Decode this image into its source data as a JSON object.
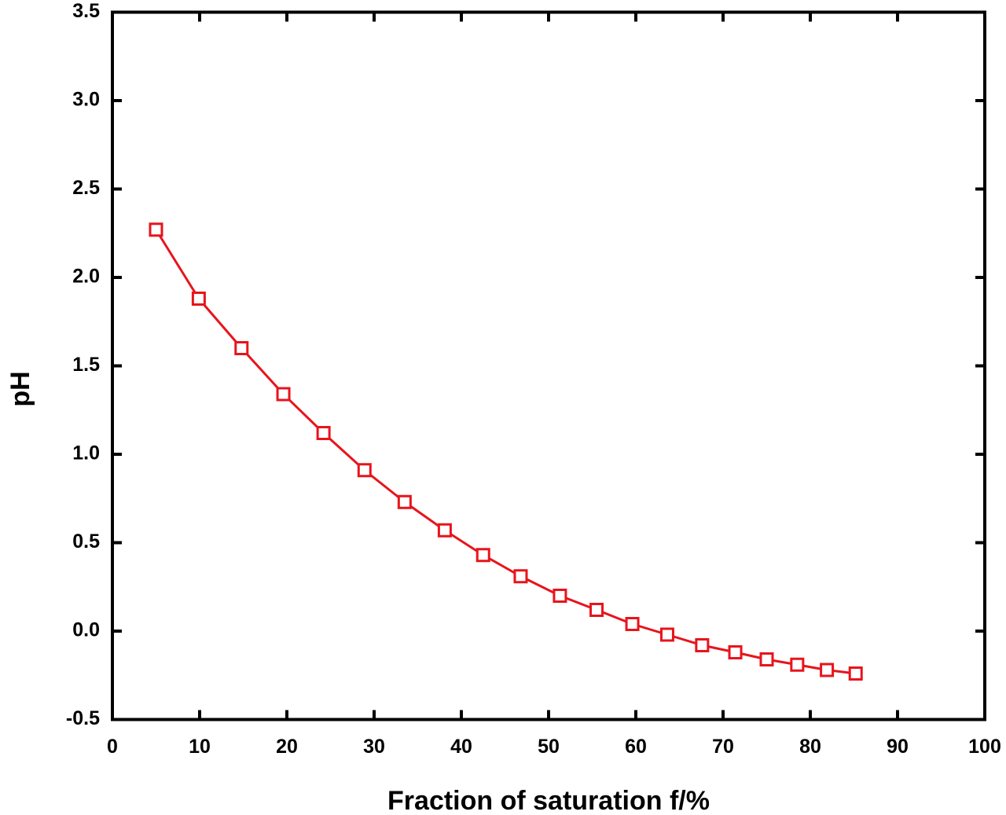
{
  "chart_data": {
    "type": "line",
    "xlabel": "Fraction of saturation f/%",
    "ylabel": "pH",
    "x": [
      5.0,
      9.9,
      14.8,
      19.6,
      24.2,
      28.9,
      33.5,
      38.1,
      42.5,
      46.8,
      51.3,
      55.5,
      59.6,
      63.6,
      67.6,
      71.4,
      75.0,
      78.5,
      81.9,
      85.2
    ],
    "series": [
      {
        "color": "#e8141c",
        "marker": "square",
        "values": [
          2.27,
          1.88,
          1.6,
          1.34,
          1.12,
          0.91,
          0.73,
          0.57,
          0.43,
          0.31,
          0.2,
          0.12,
          0.04,
          -0.02,
          -0.08,
          -0.12,
          -0.16,
          -0.19,
          -0.22,
          -0.24
        ]
      }
    ],
    "xlim": [
      0,
      100
    ],
    "xticks": [
      0,
      10,
      20,
      30,
      40,
      50,
      60,
      70,
      80,
      90,
      100
    ],
    "ylim": [
      -0.5,
      3.5
    ],
    "yticks": [
      -0.5,
      {
        "value": 0,
        "label": "0.0"
      },
      0.5,
      {
        "value": 1,
        "label": "1.0"
      },
      1.5,
      {
        "value": 2,
        "label": "2.0"
      },
      2.5,
      {
        "value": 3,
        "label": "3.0"
      },
      3.5
    ],
    "grid": false
  }
}
